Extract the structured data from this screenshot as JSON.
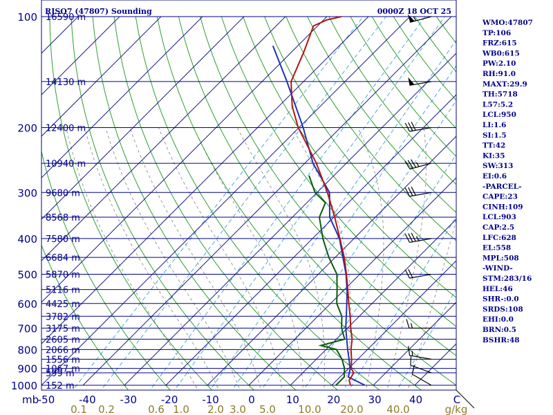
{
  "header": {
    "station": "RJSO7 (47807) Sounding",
    "time": "0000Z 18 OCT 25"
  },
  "indices": [
    "WMO:47807",
    "TP:106",
    "FRZ:615",
    "WB0:615",
    "PW:2.10",
    "RH:91.0",
    "MAXT:29.9",
    "TH:5718",
    "L57:5.2",
    "LCL:950",
    "LI:1.6",
    "SI:1.5",
    "TT:42",
    "KI:35",
    "SW:313",
    "EI:0.6",
    "-PARCEL-",
    "CAPE:23",
    "CINH:109",
    "LCL:903",
    "CAP:2.5",
    "LFC:628",
    "EL:558",
    "MPL:508",
    "-WIND-",
    "STM:283/16",
    "HEL:46",
    "SHR-:0.0",
    "SRDS:108",
    "EHI:0.0",
    "BRN:0.5",
    "BSHR:48"
  ],
  "colors": {
    "frame": "#00008b",
    "isobar": "#00008b",
    "isotherm": "#1e1e8c",
    "dry_adiabat": "#2e9e2e",
    "moist_adiabat": "#999999",
    "mixing_ratio": "#4aa8d8",
    "temperature": "#b41414",
    "dewpoint": "#0a5a0a",
    "parcel": "#1e32b4",
    "wind": "#000000"
  },
  "chart_data": {
    "type": "skew-t",
    "pressure_unit_label": "mb",
    "p_range": [
      1000,
      100
    ],
    "t_range_at_bottom": [
      -50,
      50
    ],
    "pressure_levels": [
      {
        "p": 1000,
        "label": "1000",
        "height_label": "152 m"
      },
      {
        "p": 925,
        "label": "",
        "height_label": "599 m"
      },
      {
        "p": 900,
        "label": "900",
        "height_label": "1067 m"
      },
      {
        "p": 850,
        "label": "",
        "height_label": "1556 m"
      },
      {
        "p": 800,
        "label": "800",
        "height_label": "2066 m"
      },
      {
        "p": 750,
        "label": "",
        "height_label": "2605 m"
      },
      {
        "p": 700,
        "label": "700",
        "height_label": "3175 m"
      },
      {
        "p": 650,
        "label": "",
        "height_label": "3782 m"
      },
      {
        "p": 600,
        "label": "600",
        "height_label": "4425 m"
      },
      {
        "p": 550,
        "label": "",
        "height_label": "5116 m"
      },
      {
        "p": 500,
        "label": "500",
        "height_label": "5870 m"
      },
      {
        "p": 450,
        "label": "",
        "height_label": "6684 m"
      },
      {
        "p": 400,
        "label": "400",
        "height_label": "7580 m"
      },
      {
        "p": 350,
        "label": "",
        "height_label": "8568 m"
      },
      {
        "p": 300,
        "label": "300",
        "height_label": "9680 m"
      },
      {
        "p": 250,
        "label": "",
        "height_label": "10940 m"
      },
      {
        "p": 200,
        "label": "200",
        "height_label": "12400 m"
      },
      {
        "p": 150,
        "label": "",
        "height_label": "14130 m"
      },
      {
        "p": 100,
        "label": "100",
        "height_label": "16590 m"
      }
    ],
    "temperature_ticks": [
      "-50",
      "-40",
      "-30",
      "-20",
      "-10",
      "0",
      "10",
      "20",
      "30",
      "40",
      "C"
    ],
    "mixing_ratio_ticks": [
      "0.1",
      "0.2",
      "0.6",
      "1.0",
      "2.0",
      "3.0",
      "5.0",
      "10.0",
      "20.0",
      "40.0",
      "g/kg"
    ],
    "temperature_profile": [
      {
        "p": 1000,
        "t": 24.5
      },
      {
        "p": 970,
        "t": 23.0
      },
      {
        "p": 925,
        "t": 22.3
      },
      {
        "p": 900,
        "t": 20.6
      },
      {
        "p": 850,
        "t": 18.5
      },
      {
        "p": 800,
        "t": 16.0
      },
      {
        "p": 750,
        "t": 13.8
      },
      {
        "p": 700,
        "t": 10.8
      },
      {
        "p": 650,
        "t": 7.8
      },
      {
        "p": 600,
        "t": 4.4
      },
      {
        "p": 550,
        "t": 0.8
      },
      {
        "p": 500,
        "t": -3.2
      },
      {
        "p": 450,
        "t": -7.8
      },
      {
        "p": 400,
        "t": -13.4
      },
      {
        "p": 350,
        "t": -19.8
      },
      {
        "p": 300,
        "t": -27.5
      },
      {
        "p": 250,
        "t": -37.2
      },
      {
        "p": 200,
        "t": -50.2
      },
      {
        "p": 175,
        "t": -56.8
      },
      {
        "p": 150,
        "t": -63.0
      },
      {
        "p": 125,
        "t": -67.0
      },
      {
        "p": 106,
        "t": -71.0
      },
      {
        "p": 102,
        "t": -69.2
      },
      {
        "p": 100,
        "t": -66.5
      }
    ],
    "dewpoint_profile": [
      {
        "p": 1000,
        "td": 21.0
      },
      {
        "p": 950,
        "td": 21.0
      },
      {
        "p": 900,
        "td": 19.0
      },
      {
        "p": 850,
        "td": 16.2
      },
      {
        "p": 800,
        "td": 12.5
      },
      {
        "p": 780,
        "td": 7.8
      },
      {
        "p": 750,
        "td": 12.0
      },
      {
        "p": 700,
        "td": 8.6
      },
      {
        "p": 650,
        "td": 5.8
      },
      {
        "p": 600,
        "td": 1.5
      },
      {
        "p": 550,
        "td": -1.8
      },
      {
        "p": 500,
        "td": -5.5
      },
      {
        "p": 450,
        "td": -11.5
      },
      {
        "p": 400,
        "td": -17.5
      },
      {
        "p": 350,
        "td": -23.5
      },
      {
        "p": 320,
        "td": -25.5
      },
      {
        "p": 300,
        "td": -30.5
      },
      {
        "p": 270,
        "td": -36.0
      }
    ],
    "parcel_profile": [
      {
        "p": 1000,
        "t": 28.0
      },
      {
        "p": 950,
        "t": 22.0
      },
      {
        "p": 903,
        "t": 20.5
      },
      {
        "p": 850,
        "t": 17.9
      },
      {
        "p": 800,
        "t": 15.2
      },
      {
        "p": 700,
        "t": 9.6
      },
      {
        "p": 628,
        "t": 5.6
      },
      {
        "p": 558,
        "t": 1.2
      },
      {
        "p": 500,
        "t": -3.3
      },
      {
        "p": 400,
        "t": -13.5
      },
      {
        "p": 350,
        "t": -21.0
      },
      {
        "p": 300,
        "t": -27.0
      },
      {
        "p": 250,
        "t": -38.0
      },
      {
        "p": 200,
        "t": -49.0
      },
      {
        "p": 150,
        "t": -64.0
      },
      {
        "p": 120,
        "t": -76.0
      }
    ],
    "wind_barbs": [
      {
        "p": 1000,
        "dir": 300,
        "spd": 10
      },
      {
        "p": 925,
        "dir": 290,
        "spd": 10
      },
      {
        "p": 850,
        "dir": 280,
        "spd": 15
      },
      {
        "p": 700,
        "dir": 270,
        "spd": 15
      },
      {
        "p": 500,
        "dir": 260,
        "spd": 20
      },
      {
        "p": 400,
        "dir": 260,
        "spd": 35
      },
      {
        "p": 300,
        "dir": 260,
        "spd": 30
      },
      {
        "p": 250,
        "dir": 255,
        "spd": 35
      },
      {
        "p": 200,
        "dir": 260,
        "spd": 30
      },
      {
        "p": 150,
        "dir": 260,
        "spd": 50
      },
      {
        "p": 100,
        "dir": 255,
        "spd": 55
      }
    ]
  }
}
